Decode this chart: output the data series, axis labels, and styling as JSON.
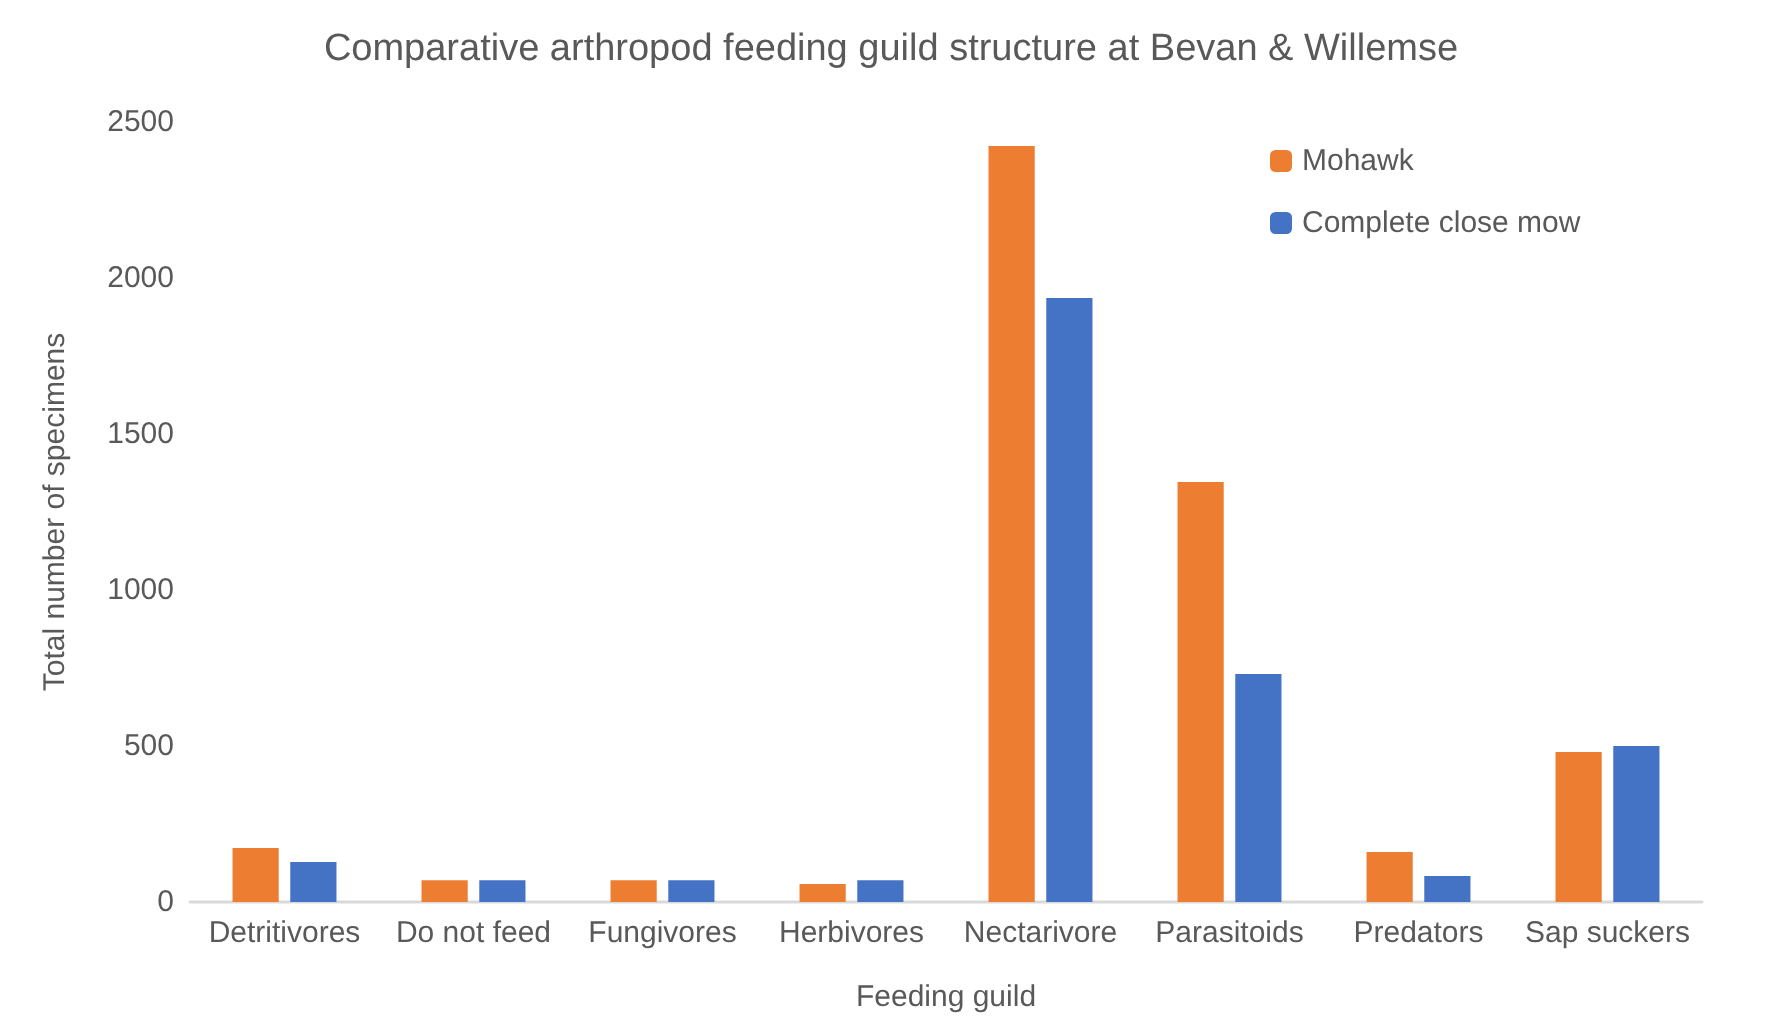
{
  "chart_data": {
    "type": "bar",
    "title": "Comparative arthropod feeding guild structure at Bevan & Willemse",
    "xlabel": "Feeding guild",
    "ylabel": "Total number of specimens",
    "categories": [
      "Detritivores",
      "Do not feed",
      "Fungivores",
      "Herbivores",
      "Nectarivore",
      "Parasitoids",
      "Predators",
      "Sap suckers"
    ],
    "series": [
      {
        "name": "Mohawk",
        "color": "#ed7d31",
        "values": [
          173,
          70,
          70,
          58,
          2423,
          1346,
          160,
          481
        ]
      },
      {
        "name": "Complete close mow",
        "color": "#4472c4",
        "values": [
          128,
          70,
          70,
          70,
          1936,
          731,
          83,
          500
        ]
      }
    ],
    "ylim": [
      0,
      2500
    ],
    "yticks": [
      0,
      500,
      1000,
      1500,
      2000,
      2500
    ],
    "grid": false,
    "legend": "top right"
  }
}
